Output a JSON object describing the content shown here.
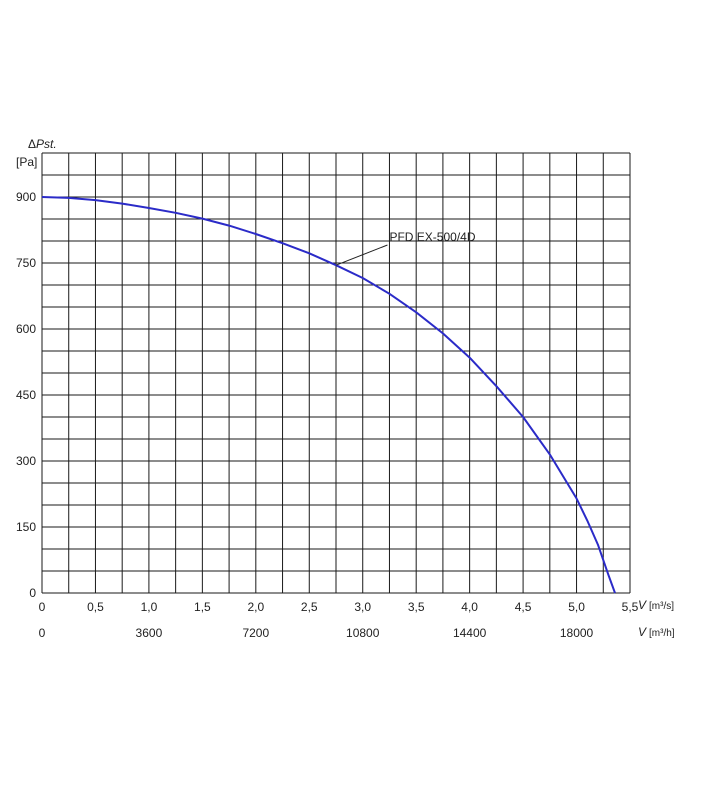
{
  "chart_data": {
    "type": "line",
    "ylabel_symbol": "Δ",
    "ylabel_italic": "Pst.",
    "yunit": "[Pa]",
    "x1label_italic": "V",
    "x1unit": "[m³/s]",
    "x2label_italic": "V",
    "x2unit": "[m³/h]",
    "xlim": [
      0,
      5.5
    ],
    "ylim": [
      0,
      1000
    ],
    "grid": true,
    "y_ticks": [
      "0",
      "150",
      "300",
      "450",
      "600",
      "750",
      "900"
    ],
    "y_tick_values": [
      0,
      150,
      300,
      450,
      600,
      750,
      900
    ],
    "x1_ticks": [
      "0",
      "0,5",
      "1,0",
      "1,5",
      "2,0",
      "2,5",
      "3,0",
      "3,5",
      "4,0",
      "4,5",
      "5,0",
      "5,5"
    ],
    "x1_tick_values": [
      0,
      0.5,
      1.0,
      1.5,
      2.0,
      2.5,
      3.0,
      3.5,
      4.0,
      4.5,
      5.0,
      5.5
    ],
    "x2_ticks": [
      "0",
      "3600",
      "7200",
      "10800",
      "14400",
      "18000"
    ],
    "x2_tick_values": [
      0,
      1.0,
      2.0,
      3.0,
      4.0,
      5.0
    ],
    "series": [
      {
        "name": "PFD EX-500/4D",
        "color": "#2b2bc8",
        "x": [
          0,
          0.25,
          0.5,
          0.75,
          1.0,
          1.25,
          1.5,
          1.75,
          2.0,
          2.25,
          2.5,
          2.75,
          3.0,
          3.25,
          3.5,
          3.75,
          4.0,
          4.25,
          4.5,
          4.75,
          5.0,
          5.1,
          5.2,
          5.3,
          5.36
        ],
        "y": [
          900,
          898,
          893,
          885,
          875,
          864,
          851,
          835,
          816,
          795,
          772,
          745,
          716,
          680,
          638,
          590,
          535,
          470,
          400,
          315,
          215,
          165,
          110,
          40,
          0
        ]
      }
    ],
    "annotations": [
      {
        "text": "PFD EX-500/4D",
        "x": 3.25,
        "y": 800,
        "target_x": 2.75,
        "target_y": 745
      }
    ]
  }
}
